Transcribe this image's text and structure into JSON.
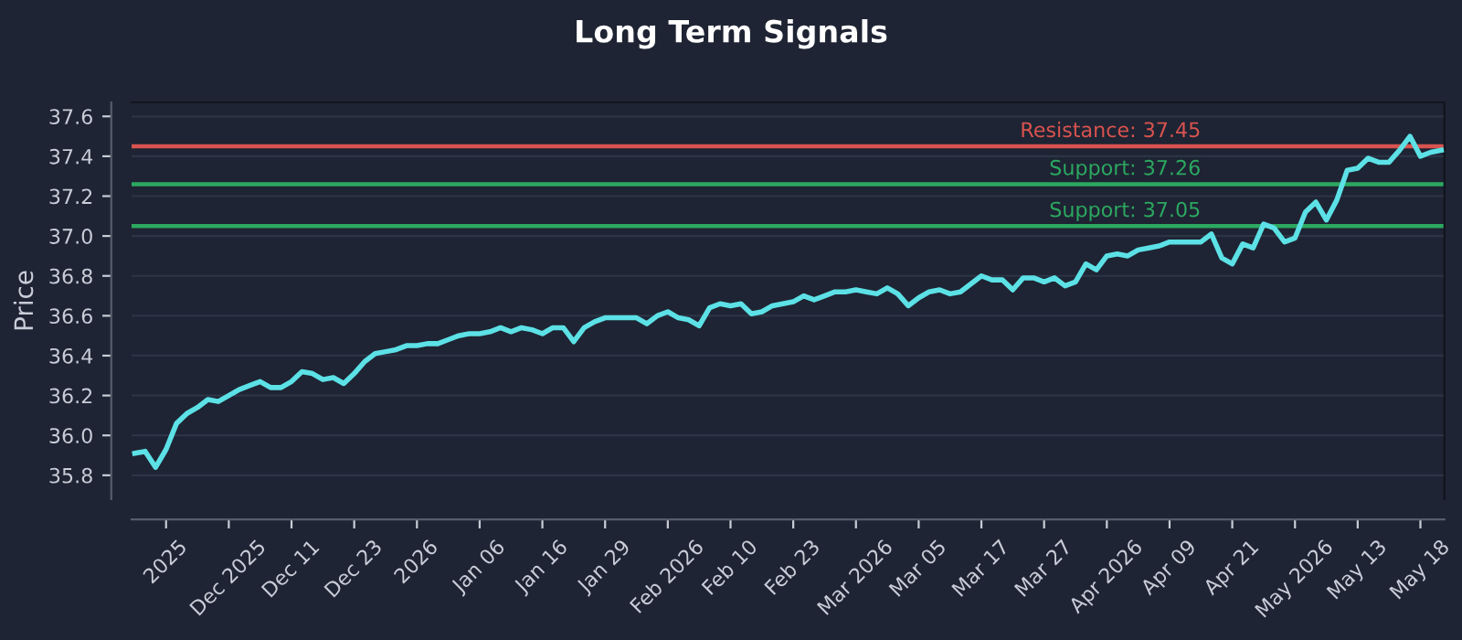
{
  "chart_data": {
    "type": "line",
    "title": "Long Term Signals",
    "ylabel": "Price",
    "categories": [
      null,
      null,
      null,
      "2025",
      null,
      null,
      null,
      null,
      null,
      "Dec 2025",
      null,
      null,
      null,
      null,
      null,
      "Dec 11",
      null,
      null,
      null,
      null,
      null,
      "Dec 23",
      null,
      null,
      null,
      null,
      null,
      "2026",
      null,
      null,
      null,
      null,
      null,
      "Jan 06",
      null,
      null,
      null,
      null,
      null,
      "Jan 16",
      null,
      null,
      null,
      null,
      null,
      "Jan 29",
      null,
      null,
      null,
      null,
      null,
      "Feb 2026",
      null,
      null,
      null,
      null,
      null,
      "Feb 10",
      null,
      null,
      null,
      null,
      null,
      "Feb 23",
      null,
      null,
      null,
      null,
      null,
      "Mar 2026",
      null,
      null,
      null,
      null,
      null,
      "Mar 05",
      null,
      null,
      null,
      null,
      null,
      "Mar 17",
      null,
      null,
      null,
      null,
      null,
      "Mar 27",
      null,
      null,
      null,
      null,
      null,
      "Apr 2026",
      null,
      null,
      null,
      null,
      null,
      "Apr 09",
      null,
      null,
      null,
      null,
      null,
      "Apr 21",
      null,
      null,
      null,
      null,
      null,
      "May 2026",
      null,
      null,
      null,
      null,
      null,
      "May 13",
      null,
      null,
      null,
      null,
      null,
      "May 18",
      null,
      null
    ],
    "series": [
      {
        "color": "#5ce1e6",
        "values": [
          35.91,
          35.92,
          35.84,
          35.93,
          36.06,
          36.11,
          36.14,
          36.18,
          36.17,
          36.2,
          36.23,
          36.25,
          36.27,
          36.24,
          36.24,
          36.27,
          36.32,
          36.31,
          36.28,
          36.29,
          36.26,
          36.31,
          36.37,
          36.41,
          36.42,
          36.43,
          36.45,
          36.45,
          36.46,
          36.46,
          36.48,
          36.5,
          36.51,
          36.51,
          36.52,
          36.54,
          36.52,
          36.54,
          36.53,
          36.51,
          36.54,
          36.54,
          36.47,
          36.54,
          36.57,
          36.59,
          36.59,
          36.59,
          36.59,
          36.56,
          36.6,
          36.62,
          36.59,
          36.58,
          36.55,
          36.64,
          36.66,
          36.65,
          36.66,
          36.61,
          36.62,
          36.65,
          36.66,
          36.67,
          36.7,
          36.68,
          36.7,
          36.72,
          36.72,
          36.73,
          36.72,
          36.71,
          36.74,
          36.71,
          36.65,
          36.69,
          36.72,
          36.73,
          36.71,
          36.72,
          36.76,
          36.8,
          36.78,
          36.78,
          36.73,
          36.79,
          36.79,
          36.77,
          36.79,
          36.75,
          36.77,
          36.86,
          36.83,
          36.9,
          36.91,
          36.9,
          36.93,
          36.94,
          36.95,
          36.97,
          36.97,
          36.97,
          36.97,
          37.01,
          36.89,
          36.86,
          36.96,
          36.94,
          37.06,
          37.04,
          36.97,
          36.99,
          37.12,
          37.17,
          37.08,
          37.18,
          37.33,
          37.34,
          37.39,
          37.37,
          37.37,
          37.43,
          37.5,
          37.4,
          37.42,
          37.43
        ]
      }
    ],
    "ylim": [
      35.68,
      37.67
    ],
    "yticks": [
      35.8,
      {
        "value": 36,
        "label": "36.0"
      },
      36.2,
      36.4,
      36.6,
      36.8,
      {
        "value": 37,
        "label": "37.0"
      },
      37.2,
      37.4,
      37.6
    ],
    "grid": "y",
    "ref_lines": [
      {
        "axis": "y",
        "value": 37.45,
        "label": "Resistance: 37.45",
        "color": "#d9534f"
      },
      {
        "axis": "y",
        "value": 37.26,
        "label": "Support: 37.26",
        "color": "#2ca860"
      },
      {
        "axis": "y",
        "value": 37.05,
        "label": "Support: 37.05",
        "color": "#2ca860"
      }
    ]
  }
}
